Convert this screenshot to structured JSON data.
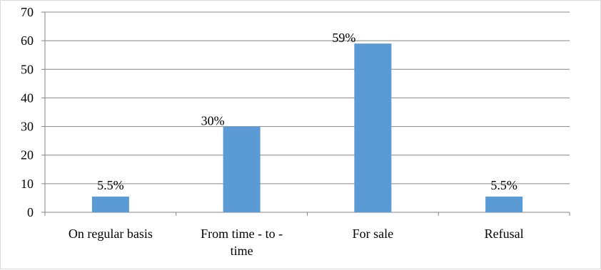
{
  "chart_data": {
    "type": "bar",
    "categories": [
      [
        "On regular basis"
      ],
      [
        "From time - to -",
        "time"
      ],
      [
        "For sale"
      ],
      [
        "Refusal"
      ]
    ],
    "values": [
      5.5,
      30,
      59,
      5.5
    ],
    "data_labels": [
      "5.5%",
      "30%",
      "59%",
      "5.5%"
    ],
    "yticks": [
      "0",
      "10",
      "20",
      "30",
      "40",
      "50",
      "60",
      "70"
    ],
    "ylim": [
      0,
      70
    ],
    "grid": true,
    "legend": "none",
    "title": "",
    "xlabel": "",
    "ylabel": "",
    "bar_color": "#5b9bd5",
    "grid_color": "#868686"
  }
}
